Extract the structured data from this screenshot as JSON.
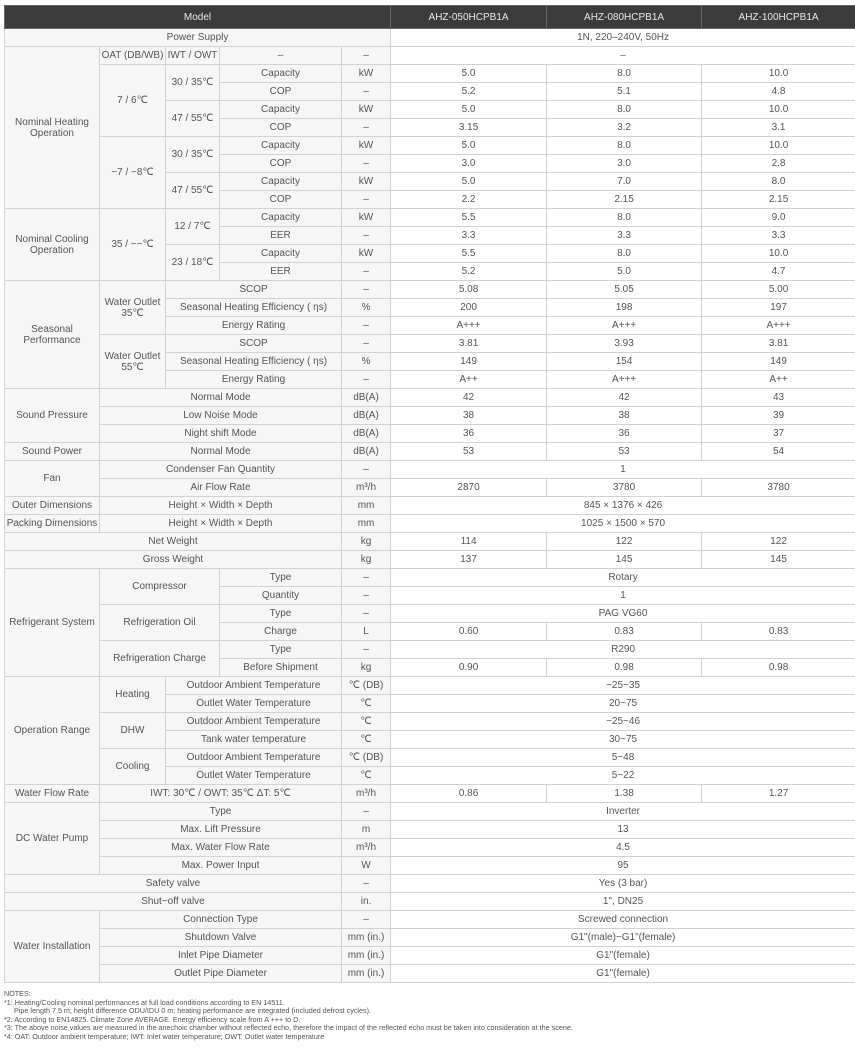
{
  "header": {
    "model": "Model",
    "models": [
      "AHZ-050HCPB1A",
      "AHZ-080HCPB1A",
      "AHZ-100HCPB1A"
    ]
  },
  "power": {
    "label": "Power Supply",
    "value": "1N, 220–240V, 50Hz"
  },
  "heat": {
    "label": "Nominal Heating Operation",
    "oat_header": "OAT (DB/WB)",
    "iwt_header": "IWT / OWT",
    "param": "–",
    "unit": "–",
    "value": "–",
    "conditions": [
      {
        "oat": "7 / 6℃",
        "water": [
          {
            "iwt": "30 / 35℃",
            "rows": [
              {
                "param": "Capacity",
                "unit": "kW",
                "values": [
                  "5.0",
                  "8.0",
                  "10.0"
                ]
              },
              {
                "param": "COP",
                "unit": "–",
                "values": [
                  "5.2",
                  "5.1",
                  "4.8"
                ]
              }
            ]
          },
          {
            "iwt": "47 / 55℃",
            "rows": [
              {
                "param": "Capacity",
                "unit": "kW",
                "values": [
                  "5.0",
                  "8.0",
                  "10.0"
                ]
              },
              {
                "param": "COP",
                "unit": "–",
                "values": [
                  "3.15",
                  "3.2",
                  "3.1"
                ]
              }
            ]
          }
        ]
      },
      {
        "oat": "−7 / −8℃",
        "water": [
          {
            "iwt": "30 / 35℃",
            "rows": [
              {
                "param": "Capacity",
                "unit": "kW",
                "values": [
                  "5.0",
                  "8.0",
                  "10.0"
                ]
              },
              {
                "param": "COP",
                "unit": "–",
                "values": [
                  "3.0",
                  "3.0",
                  "2.8"
                ]
              }
            ]
          },
          {
            "iwt": "47 / 55℃",
            "rows": [
              {
                "param": "Capacity",
                "unit": "kW",
                "values": [
                  "5.0",
                  "7.0",
                  "8.0"
                ]
              },
              {
                "param": "COP",
                "unit": "–",
                "values": [
                  "2.2",
                  "2.15",
                  "2.15"
                ]
              }
            ]
          }
        ]
      }
    ]
  },
  "cool": {
    "label": "Nominal Cooling Operation",
    "oat": "35 / −−℃",
    "water": [
      {
        "iwt": "12 / 7℃",
        "rows": [
          {
            "param": "Capacity",
            "unit": "kW",
            "values": [
              "5.5",
              "8.0",
              "9.0"
            ]
          },
          {
            "param": "EER",
            "unit": "–",
            "values": [
              "3.3",
              "3.3",
              "3.3"
            ]
          }
        ]
      },
      {
        "iwt": "23 / 18℃",
        "rows": [
          {
            "param": "Capacity",
            "unit": "kW",
            "values": [
              "5.5",
              "8.0",
              "10.0"
            ]
          },
          {
            "param": "EER",
            "unit": "–",
            "values": [
              "5.2",
              "5.0",
              "4.7"
            ]
          }
        ]
      }
    ]
  },
  "seasonal": {
    "label": "Seasonal Performance",
    "groups": [
      {
        "label": "Water Outlet 35℃",
        "rows": [
          {
            "param": "SCOP",
            "unit": "–",
            "values": [
              "5.08",
              "5.05",
              "5.00"
            ]
          },
          {
            "param": "Seasonal Heating Efficiency ( ηs)",
            "unit": "%",
            "values": [
              "200",
              "198",
              "197"
            ]
          },
          {
            "param": "Energy Rating",
            "unit": "–",
            "values": [
              "A+++",
              "A+++",
              "A+++"
            ]
          }
        ]
      },
      {
        "label": "Water Outlet 55℃",
        "rows": [
          {
            "param": "SCOP",
            "unit": "–",
            "values": [
              "3.81",
              "3.93",
              "3.81"
            ]
          },
          {
            "param": "Seasonal Heating Efficiency ( ηs)",
            "unit": "%",
            "values": [
              "149",
              "154",
              "149"
            ]
          },
          {
            "param": "Energy Rating",
            "unit": "–",
            "values": [
              "A++",
              "A+++",
              "A++"
            ]
          }
        ]
      }
    ]
  },
  "sound_pressure": {
    "label": "Sound Pressure",
    "rows": [
      {
        "param": "Normal Mode",
        "unit": "dB(A)",
        "values": [
          "42",
          "42",
          "43"
        ]
      },
      {
        "param": "Low Noise Mode",
        "unit": "dB(A)",
        "values": [
          "38",
          "38",
          "39"
        ]
      },
      {
        "param": "Night shift Mode",
        "unit": "dB(A)",
        "values": [
          "36",
          "36",
          "37"
        ]
      }
    ]
  },
  "sound_power": {
    "label": "Sound Power",
    "param": "Normal Mode",
    "unit": "dB(A)",
    "values": [
      "53",
      "53",
      "54"
    ]
  },
  "fan": {
    "label": "Fan",
    "qty": {
      "param": "Condenser Fan Quantity",
      "unit": "–",
      "value": "1"
    },
    "air": {
      "param": "Air Flow Rate",
      "unit": "m³/h",
      "values": [
        "2870",
        "3780",
        "3780"
      ]
    }
  },
  "outer": {
    "label": "Outer Dimensions",
    "param": "Height × Width × Depth",
    "unit": "mm",
    "value": "845 × 1376 × 426"
  },
  "packing": {
    "label": "Packing Dimensions",
    "param": "Height × Width × Depth",
    "unit": "mm",
    "value": "1025 × 1500 × 570"
  },
  "net": {
    "label": "Net Weight",
    "unit": "kg",
    "values": [
      "114",
      "122",
      "122"
    ]
  },
  "gross": {
    "label": "Gross Weight",
    "unit": "kg",
    "values": [
      "137",
      "145",
      "145"
    ]
  },
  "refrig": {
    "label": "Refrigerant System",
    "compressor": {
      "label": "Compressor",
      "type": {
        "param": "Type",
        "unit": "–",
        "value": "Rotary"
      },
      "qty": {
        "param": "Quantity",
        "unit": "–",
        "value": "1"
      }
    },
    "oil": {
      "label": "Refrigeration Oil",
      "type": {
        "param": "Type",
        "unit": "–",
        "value": "PAG VG60"
      },
      "charge": {
        "param": "Charge",
        "unit": "L",
        "values": [
          "0.60",
          "0.83",
          "0.83"
        ]
      }
    },
    "charge": {
      "label": "Refrigeration Charge",
      "type": {
        "param": "Type",
        "unit": "–",
        "value": "R290"
      },
      "shipment": {
        "param": "Before Shipment",
        "unit": "kg",
        "values": [
          "0.90",
          "0.98",
          "0.98"
        ]
      }
    }
  },
  "oprange": {
    "label": "Operation Range",
    "groups": [
      {
        "label": "Heating",
        "rows": [
          {
            "param": "Outdoor Ambient Temperature",
            "unit": "℃ (DB)",
            "value": "−25~35"
          },
          {
            "param": "Outlet Water Temperature",
            "unit": "℃",
            "value": "20~75"
          }
        ]
      },
      {
        "label": "DHW",
        "rows": [
          {
            "param": "Outdoor Ambient Temperature",
            "unit": "℃",
            "value": "−25~46"
          },
          {
            "param": "Tank water temperature",
            "unit": "℃",
            "value": "30~75"
          }
        ]
      },
      {
        "label": "Cooling",
        "rows": [
          {
            "param": "Outdoor Ambient Temperature",
            "unit": "℃ (DB)",
            "value": "5~48"
          },
          {
            "param": "Outlet Water Temperature",
            "unit": "℃",
            "value": "5~22"
          }
        ]
      }
    ]
  },
  "flow": {
    "label": "Water Flow Rate",
    "param": "IWT: 30℃ / OWT: 35℃  ΔT: 5℃",
    "unit": "m³/h",
    "values": [
      "0.86",
      "1.38",
      "1.27"
    ]
  },
  "pump": {
    "label": "DC Water Pump",
    "rows": [
      {
        "param": "Type",
        "unit": "–",
        "value": "Inverter"
      },
      {
        "param": "Max. Lift Pressure",
        "unit": "m",
        "value": "13"
      },
      {
        "param": "Max. Water Flow Rate",
        "unit": "m³/h",
        "value": "4.5"
      },
      {
        "param": "Max. Power Input",
        "unit": "W",
        "value": "95"
      }
    ]
  },
  "safety": {
    "label": "Safety valve",
    "unit": "–",
    "value": "Yes (3 bar)"
  },
  "shutoff": {
    "label": "Shut−off valve",
    "unit": "in.",
    "value": "1\", DN25"
  },
  "install": {
    "label": "Water Installation",
    "rows": [
      {
        "param": "Connection Type",
        "unit": "–",
        "value": "Screwed connection"
      },
      {
        "param": "Shutdown Valve",
        "unit": "mm (in.)",
        "value": "G1\"(male)−G1\"(female)"
      },
      {
        "param": "Inlet Pipe Diameter",
        "unit": "mm (in.)",
        "value": "G1\"(female)"
      },
      {
        "param": "Outlet Pipe Diameter",
        "unit": "mm (in.)",
        "value": "G1\"(female)"
      }
    ]
  },
  "notes": {
    "title": "NOTES:",
    "lines": [
      "*1: Heating/Cooling nominal performances at full load conditions according to EN 14511.",
      "     Pipe length 7.5 m; height difference ODU/IDU 0 m; heating performance are integrated (included defrost cycles).",
      "*2: According to EN14825. Climate Zone AVERAGE. Energy efficiency scale from A +++ to D.",
      "*3: The above noise values are measured in the anechoic chamber without reflected echo, therefore the impact of the reflected echo must be taken into consideration at the scene.",
      "*4: OAT: Outdoor ambient temperature; IWT: Inlet water temperature; OWT: Outlet water temperature"
    ]
  },
  "colors": {
    "header_bg": "#3b3b3b",
    "header_text": "#e8e8e8",
    "border": "#d2d2d2",
    "text": "#555555"
  }
}
